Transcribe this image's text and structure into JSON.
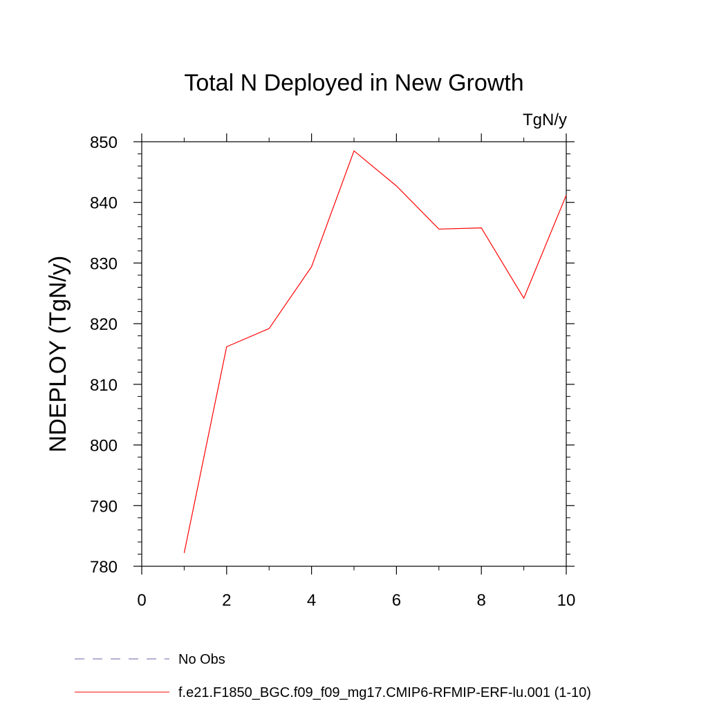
{
  "chart_data": {
    "type": "line",
    "title": "Total N Deployed in New Growth",
    "units_label": "TgN/y",
    "ylabel": "NDEPLOY  (TgN/y)",
    "xlabel": "",
    "xlim": [
      0,
      10
    ],
    "ylim": [
      780,
      850
    ],
    "x_ticks": [
      "0",
      "2",
      "4",
      "6",
      "8",
      "10"
    ],
    "y_ticks": [
      "780",
      "790",
      "800",
      "810",
      "820",
      "830",
      "840",
      "850"
    ],
    "grid": false,
    "legend_position": "bottom-left",
    "series": [
      {
        "name": "f.e21.F1850_BGC.f09_f09_mg17.CMIP6-RFMIP-ERF-lu.001 (1-10)",
        "color": "#ff0000",
        "style": "solid",
        "x": [
          1,
          2,
          3,
          4,
          5,
          6,
          7,
          8,
          9,
          10
        ],
        "y": [
          782.2,
          816.2,
          819.2,
          829.4,
          848.5,
          842.7,
          835.6,
          835.8,
          824.2,
          841.2
        ]
      },
      {
        "name": "No Obs",
        "color": "#6e5fa8",
        "style": "dashed",
        "x": [],
        "y": []
      }
    ]
  }
}
